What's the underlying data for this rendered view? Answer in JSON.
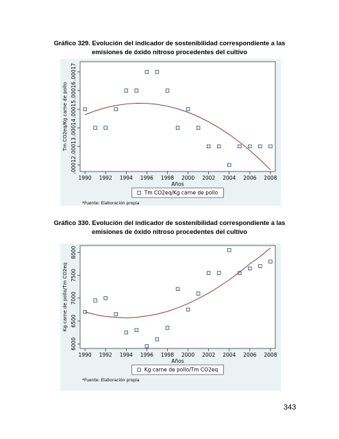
{
  "chart_data": [
    {
      "type": "scatter",
      "title": "Gráfico 329. Evolución del indicador de sostenibilidad correspondiente a las emisiones de óxido nitroso procedentes del cultivo",
      "xlabel": "Años",
      "ylabel": "Tm CO2eq/Kg carne de pollo",
      "note": "*Fuente: Elaboración propia",
      "x": [
        1990,
        1991,
        1992,
        1993,
        1994,
        1995,
        1996,
        1997,
        1998,
        1999,
        2000,
        2001,
        2002,
        2003,
        2004,
        2005,
        2006,
        2007,
        2008
      ],
      "series": [
        {
          "name": "Tm CO2eq/Kg carne de pollo",
          "color": "#1a476f",
          "style": "markers",
          "values": [
            0.00015,
            0.00014,
            0.00014,
            0.00015,
            0.00016,
            0.00016,
            0.00017,
            0.00017,
            0.00016,
            0.00014,
            0.00015,
            0.00014,
            0.00013,
            0.00013,
            0.00012,
            0.00013,
            0.00013,
            0.00013,
            0.00013
          ]
        },
        {
          "color": "#90353b",
          "style": "line",
          "values": [
            0.000147,
            0.0001491,
            0.0001508,
            0.000152,
            0.0001528,
            0.0001532,
            0.0001531,
            0.0001526,
            0.0001516,
            0.0001502,
            0.0001483,
            0.000146,
            0.0001432,
            0.00014,
            0.0001364,
            0.0001323,
            0.0001278,
            0.0001228,
            0.0001174
          ]
        }
      ],
      "xlim": [
        1989.53,
        2008.47
      ],
      "xticks": [
        1990,
        1992,
        1994,
        1996,
        1998,
        2000,
        2002,
        2004,
        2006,
        2008
      ],
      "ylim": [
        0.0001165,
        0.0001755
      ],
      "yticks": [
        {
          "value": 0.00012,
          "label": ".00012"
        },
        {
          "value": 0.00013,
          "label": ".00013"
        },
        {
          "value": 0.00014,
          "label": ".00014"
        },
        {
          "value": 0.00015,
          "label": ".00015"
        },
        {
          "value": 0.00016,
          "label": ".00016"
        },
        {
          "value": 0.00017,
          "label": ".00017"
        }
      ],
      "grid": false,
      "legend": "bottom"
    },
    {
      "type": "scatter",
      "title": "Gráfico 330. Evolución del indicador de sostenibilidad correspondiente a las emisiones de óxido nitroso procedentes del cultivo",
      "xlabel": "Años",
      "ylabel": "Kg carne de pollo/Tm CO2eq",
      "note": "*Fuente: Elaboración propia",
      "x": [
        1990,
        1991,
        1992,
        1993,
        1994,
        1995,
        1996,
        1997,
        1998,
        1999,
        2000,
        2001,
        2002,
        2003,
        2004,
        2005,
        2006,
        2007,
        2008
      ],
      "series": [
        {
          "name": "Kg carne de pollo/Tm CO2eq",
          "color": "#1a476f",
          "style": "markers",
          "values": [
            6700,
            6950,
            7000,
            6650,
            6250,
            6300,
            5950,
            6100,
            6350,
            7200,
            6750,
            7100,
            7550,
            7550,
            8050,
            7550,
            7650,
            7700,
            7800
          ]
        },
        {
          "color": "#90353b",
          "style": "line",
          "values": [
            6700,
            6640,
            6600,
            6580,
            6570,
            6580,
            6610,
            6650,
            6710,
            6790,
            6880,
            6990,
            7110,
            7250,
            7400,
            7570,
            7750,
            7910,
            8100
          ]
        }
      ],
      "xlim": [
        1989.53,
        2008.47
      ],
      "xticks": [
        1990,
        1992,
        1994,
        1996,
        1998,
        2000,
        2002,
        2004,
        2006,
        2008
      ],
      "ylim": [
        5900,
        8150
      ],
      "yticks": [
        6000,
        6500,
        7000,
        7500,
        8000
      ],
      "grid": false,
      "legend": "bottom"
    }
  ],
  "page_number": "343"
}
